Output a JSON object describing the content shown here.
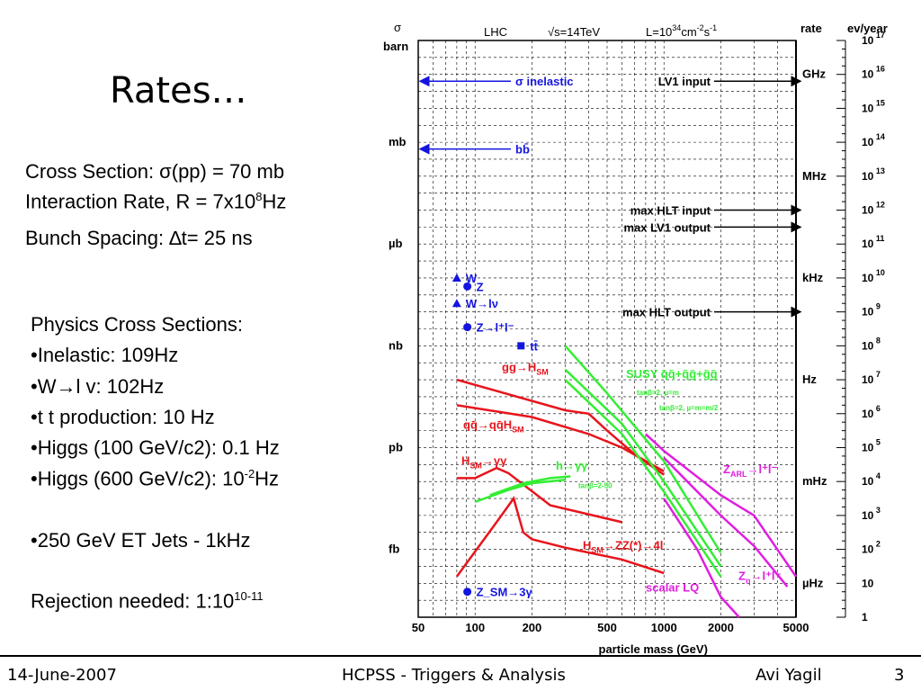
{
  "slide": {
    "title": "Rates…",
    "left_block": {
      "cross_section": "Cross Section: σ(pp) = 70 mb",
      "interaction_rate_pre": "Interaction Rate, R = 7x10",
      "interaction_rate_exp": "8",
      "interaction_rate_post": "Hz",
      "bunch_spacing": "Bunch Spacing: ∆t= 25 ns",
      "physics_header": "Physics Cross Sections:",
      "inelastic": "•Inelastic: 109Hz",
      "wlv": "•W→l v: 102Hz",
      "ttbar": "•t t production: 10 Hz",
      "higgs100": "•Higgs (100 GeV/c2): 0.1 Hz",
      "higgs600_pre": "•Higgs (600 GeV/c2): 10",
      "higgs600_exp": "-2",
      "higgs600_post": "Hz",
      "jets": "•250 GeV ET Jets - 1kHz",
      "rejection_pre": "Rejection needed: 1:10",
      "rejection_exp": "10-11"
    },
    "footer": {
      "date": "14-June-2007",
      "center": "HCPSS - Triggers & Analysis",
      "author": "Avi Yagil",
      "page": "3"
    }
  },
  "chart_data": {
    "type": "line",
    "x_scale": "log",
    "y_scale": "log",
    "xlim": [
      50,
      5000
    ],
    "ylim_ev_per_year": [
      1,
      100000000000000000
    ],
    "xlabel": "particle mass (GeV)",
    "x_ticks": [
      "50",
      "100",
      "200",
      "500",
      "1000",
      "2000",
      "5000"
    ],
    "header": {
      "lhc": "LHC",
      "energy": "√s=14TeV",
      "lumi": "L=10",
      "lumi_exp": "34",
      "lumi_unit": "cm",
      "lumi_unit_exp": "-2",
      "lumi_s": "s",
      "lumi_s_exp": "-1"
    },
    "left_axis": {
      "label_top": "σ",
      "label_unit": "barn",
      "ticks": [
        {
          "label": "barn",
          "ev_exp": 17
        },
        {
          "label": "mb",
          "ev_exp": 14
        },
        {
          "label": "µb",
          "ev_exp": 11
        },
        {
          "label": "nb",
          "ev_exp": 8
        },
        {
          "label": "pb",
          "ev_exp": 5
        },
        {
          "label": "fb",
          "ev_exp": 2
        }
      ]
    },
    "rate_axis": {
      "label": "rate",
      "ticks": [
        {
          "label": "GHz",
          "ev_exp": 16
        },
        {
          "label": "MHz",
          "ev_exp": 13
        },
        {
          "label": "kHz",
          "ev_exp": 10
        },
        {
          "label": "Hz",
          "ev_exp": 7
        },
        {
          "label": "mHz",
          "ev_exp": 4
        },
        {
          "label": "µHz",
          "ev_exp": 1
        }
      ]
    },
    "right_axis": {
      "label": "ev/year",
      "ticks": [
        "10^17",
        "10^16",
        "10^15",
        "10^14",
        "10^13",
        "10^12",
        "10^11",
        "10^10",
        "10^9",
        "10^8",
        "10^7",
        "10^6",
        "10^5",
        "10^4",
        "10^3",
        "10^2",
        "10",
        "1"
      ]
    },
    "trigger_levels": [
      {
        "label": "LV1 input",
        "ev_exp": 15.8,
        "side": "right"
      },
      {
        "label": "max HLT input",
        "ev_exp": 12.0,
        "side": "right"
      },
      {
        "label": "max LV1 output",
        "ev_exp": 11.5,
        "side": "right"
      },
      {
        "label": "max HLT output",
        "ev_exp": 9.0,
        "side": "right"
      }
    ],
    "cross_section_arrows": [
      {
        "label": "σ inelastic",
        "ev_exp": 15.8
      },
      {
        "label": "bb̄",
        "ev_exp": 13.8
      }
    ],
    "points": [
      {
        "label": "W",
        "mass": 80,
        "ev_exp": 10.0,
        "marker": "triangle"
      },
      {
        "label": "Z",
        "mass": 91,
        "ev_exp": 9.75,
        "marker": "circle"
      },
      {
        "label": "W→lν",
        "mass": 80,
        "ev_exp": 9.25,
        "marker": "triangle"
      },
      {
        "label": "Z→l⁺l⁻",
        "mass": 91,
        "ev_exp": 8.55,
        "marker": "circle"
      },
      {
        "label": "tt̄",
        "mass": 175,
        "ev_exp": 8.0,
        "marker": "square"
      },
      {
        "label": "Z_SM→3γ",
        "mass": 91,
        "ev_exp": 0.75,
        "marker": "circle"
      }
    ],
    "series": [
      {
        "name": "gg→H_SM",
        "color": "#e8141c",
        "x": [
          80,
          300,
          400,
          500,
          700,
          1000
        ],
        "y_exp": [
          7.0,
          6.1,
          6.0,
          5.5,
          4.8,
          4.2
        ]
      },
      {
        "name": "qq̄→qq̄H_SM",
        "color": "#e8141c",
        "x": [
          80,
          200,
          400,
          600,
          1000
        ],
        "y_exp": [
          6.25,
          5.9,
          5.4,
          5.0,
          4.3
        ]
      },
      {
        "name": "H_SM→γγ",
        "color": "#e8141c",
        "x": [
          80,
          100,
          130,
          150,
          250,
          600
        ],
        "y_exp": [
          4.1,
          4.1,
          4.4,
          4.25,
          3.3,
          2.8
        ]
      },
      {
        "name": "H_SM→ZZ(*)→4l",
        "color": "#e8141c",
        "x": [
          80,
          130,
          160,
          180,
          200,
          300,
          600,
          1000
        ],
        "y_exp": [
          1.2,
          2.8,
          3.5,
          2.5,
          2.3,
          2.05,
          1.7,
          1.3
        ]
      },
      {
        "name": "SUSY q̃q̃+q̃g̃+g̃g̃",
        "color": "#33ee33",
        "x": [
          300,
          500,
          1000,
          2000
        ],
        "y_exp": [
          8.0,
          6.6,
          4.6,
          1.9
        ]
      },
      {
        "name": "tanβ=2, µ=m_g̃=m_q̃",
        "color": "#33ee33",
        "x": [
          300,
          600,
          1000,
          2000
        ],
        "y_exp": [
          7.3,
          5.7,
          4.0,
          1.5
        ]
      },
      {
        "name": "tanβ=2, µ=m_g̃=m_q̃/2",
        "color": "#33ee33",
        "x": [
          300,
          600,
          1000,
          2000
        ],
        "y_exp": [
          7.0,
          5.4,
          3.7,
          1.2
        ]
      },
      {
        "name": "h→γγ",
        "color": "#33ee33",
        "x": [
          100,
          150,
          200,
          300
        ],
        "y_exp": [
          3.4,
          3.75,
          3.95,
          4.05
        ]
      },
      {
        "name": "tanβ=2-50",
        "color": "#33ee33",
        "x": [
          120,
          180,
          250,
          320
        ],
        "y_exp": [
          3.6,
          3.95,
          4.1,
          4.15
        ]
      },
      {
        "name": "Z_ARL→l⁺l⁻",
        "color": "#e01ee0",
        "x": [
          800,
          1000,
          2000,
          3000,
          5000
        ],
        "y_exp": [
          5.4,
          4.9,
          3.6,
          3.0,
          1.2
        ]
      },
      {
        "name": "Z_η→l⁺l⁻",
        "color": "#e01ee0",
        "x": [
          1000,
          2000,
          3000,
          4500
        ],
        "y_exp": [
          4.7,
          3.0,
          2.1,
          0.9
        ]
      },
      {
        "name": "scalar LQ",
        "color": "#e01ee0",
        "x": [
          1000,
          1500,
          2000,
          2500
        ],
        "y_exp": [
          3.5,
          2.0,
          0.6,
          0.0
        ]
      }
    ],
    "annotations": [
      {
        "text": "gg→H",
        "sub": "SM",
        "color": "#e8141c"
      },
      {
        "text": "qq̄→qq̄H",
        "sub": "SM",
        "color": "#e8141c"
      },
      {
        "text": "H",
        "sub": "SM",
        "tail": "→γγ",
        "color": "#e8141c"
      },
      {
        "text": "H",
        "sub": "SM",
        "tail": "→ZZ(*)→4l",
        "color": "#e8141c"
      },
      {
        "text": "SUSY q̃q̃+q̃g̃+g̃g̃",
        "color": "#33ee33"
      },
      {
        "text": "tanβ=2, µ=m",
        "color": "#33ee33"
      },
      {
        "text": "tanβ=2, µ=m=m/2",
        "color": "#33ee33"
      },
      {
        "text": "h→γγ",
        "color": "#33ee33"
      },
      {
        "text": "tanβ=2-50",
        "color": "#33ee33"
      },
      {
        "text": "Z",
        "sub": "ARL",
        "tail": "→l⁺l⁻",
        "color": "#e01ee0"
      },
      {
        "text": "Z",
        "sub": "η",
        "tail": "→l⁺l⁻",
        "color": "#e01ee0"
      },
      {
        "text": "scalar LQ",
        "color": "#e01ee0"
      }
    ],
    "colors": {
      "red": "#e8141c",
      "green": "#33ee33",
      "magenta": "#e01ee0",
      "blue": "#1414e0",
      "arrow": "#000000"
    }
  }
}
